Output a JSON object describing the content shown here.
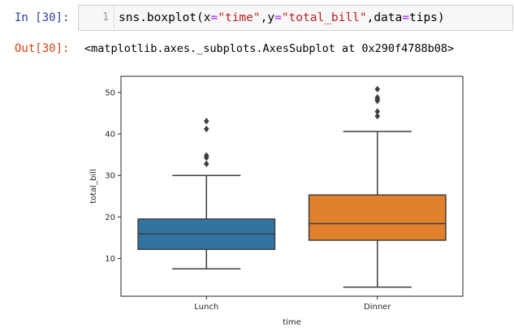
{
  "cell": {
    "in_prompt": "In [30]:",
    "out_prompt": "Out[30]:",
    "line_number": "1",
    "code": {
      "part1": "sns.boxplot(x",
      "eq1": "=",
      "str1": "\"time\"",
      "part2": ",y",
      "eq2": "=",
      "str2": "\"total_bill\"",
      "part3": ",data",
      "eq3": "=",
      "part4": "tips)"
    },
    "output_text": "<matplotlib.axes._subplots.AxesSubplot at 0x290f4788b08>"
  },
  "chart_data": {
    "type": "boxplot",
    "xlabel": "time",
    "ylabel": "total_bill",
    "categories": [
      "Lunch",
      "Dinner"
    ],
    "ylim": [
      0.9,
      53.9
    ],
    "yticks": [
      10,
      20,
      30,
      40,
      50
    ],
    "boxes": [
      {
        "category": "Lunch",
        "color": "#3274a1",
        "q1": 12.2,
        "median": 15.9,
        "q3": 19.5,
        "whisker_low": 7.5,
        "whisker_high": 30.0,
        "fliers": [
          32.8,
          34.3,
          34.8,
          41.2,
          43.1
        ]
      },
      {
        "category": "Dinner",
        "color": "#e1812c",
        "q1": 14.4,
        "median": 18.4,
        "q3": 25.3,
        "whisker_low": 3.1,
        "whisker_high": 40.6,
        "fliers": [
          44.3,
          45.4,
          48.0,
          48.3,
          48.8,
          50.8
        ]
      }
    ],
    "grid": false,
    "legend": "none"
  }
}
